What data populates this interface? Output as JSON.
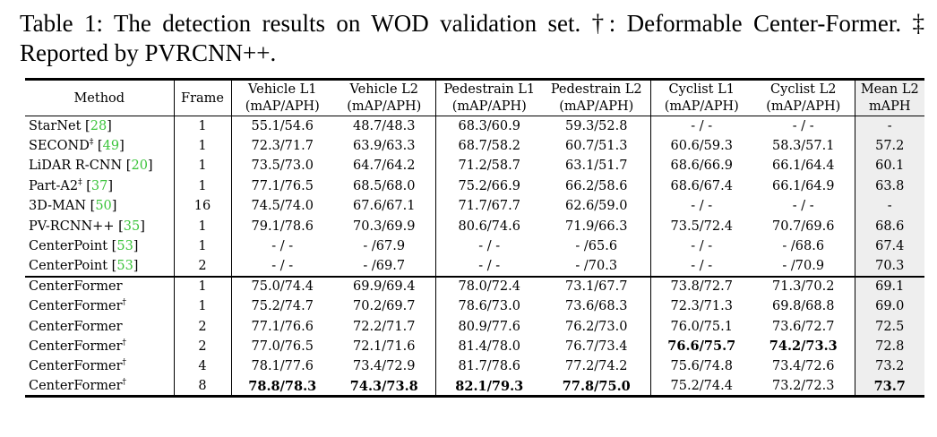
{
  "caption": "Table 1: The detection results on WOD validation set. †: Deformable Center-Former. ‡ Reported by PVRCNN++.",
  "headers": {
    "method": "Method",
    "frame": "Frame",
    "vehicle_l1": "Vehicle L1",
    "vehicle_l2": "Vehicle L2",
    "ped_l1": "Pedestrain L1",
    "ped_l2": "Pedestrain L2",
    "cyc_l1": "Cyclist L1",
    "cyc_l2": "Cyclist L2",
    "mean_l2": "Mean L2",
    "sub_map_aph": "(mAP/APH)",
    "sub_maph": "mAPH"
  },
  "rows_group1": [
    {
      "method": "StarNet",
      "sup": "",
      "ref": "28",
      "frame": "1",
      "v1": "55.1/54.6",
      "v2": "48.7/48.3",
      "p1": "68.3/60.9",
      "p2": "59.3/52.8",
      "c1": "- / -",
      "c2": "- / -",
      "mean": "-"
    },
    {
      "method": "SECOND",
      "sup": "‡",
      "ref": "49",
      "frame": "1",
      "v1": "72.3/71.7",
      "v2": "63.9/63.3",
      "p1": "68.7/58.2",
      "p2": "60.7/51.3",
      "c1": "60.6/59.3",
      "c2": "58.3/57.1",
      "mean": "57.2"
    },
    {
      "method": "LiDAR R-CNN",
      "sup": "",
      "ref": "20",
      "frame": "1",
      "v1": "73.5/73.0",
      "v2": "64.7/64.2",
      "p1": "71.2/58.7",
      "p2": "63.1/51.7",
      "c1": "68.6/66.9",
      "c2": "66.1/64.4",
      "mean": "60.1"
    },
    {
      "method": "Part-A2",
      "sup": "‡",
      "ref": "37",
      "frame": "1",
      "v1": "77.1/76.5",
      "v2": "68.5/68.0",
      "p1": "75.2/66.9",
      "p2": "66.2/58.6",
      "c1": "68.6/67.4",
      "c2": "66.1/64.9",
      "mean": "63.8"
    },
    {
      "method": "3D-MAN",
      "sup": "",
      "ref": "50",
      "frame": "16",
      "v1": "74.5/74.0",
      "v2": "67.6/67.1",
      "p1": "71.7/67.7",
      "p2": "62.6/59.0",
      "c1": "- / -",
      "c2": "- / -",
      "mean": "-"
    },
    {
      "method": "PV-RCNN++",
      "sup": "",
      "ref": "35",
      "frame": "1",
      "v1": "79.1/78.6",
      "v2": "70.3/69.9",
      "p1": "80.6/74.6",
      "p2": "71.9/66.3",
      "c1": "73.5/72.4",
      "c2": "70.7/69.6",
      "mean": "68.6"
    },
    {
      "method": "CenterPoint",
      "sup": "",
      "ref": "53",
      "frame": "1",
      "v1": "- / -",
      "v2": "- /67.9",
      "p1": "- / -",
      "p2": "- /65.6",
      "c1": "- / -",
      "c2": "- /68.6",
      "mean": "67.4"
    },
    {
      "method": "CenterPoint",
      "sup": "",
      "ref": "53",
      "frame": "2",
      "v1": "- / -",
      "v2": "- /69.7",
      "p1": "- / -",
      "p2": "- /70.3",
      "c1": "- / -",
      "c2": "- /70.9",
      "mean": "70.3"
    }
  ],
  "rows_group2": [
    {
      "method": "CenterFormer",
      "sup": "",
      "frame": "1",
      "v1": "75.0/74.4",
      "v2": "69.9/69.4",
      "p1": "78.0/72.4",
      "p2": "73.1/67.7",
      "c1": "73.8/72.7",
      "c2": "71.3/70.2",
      "mean": "69.1"
    },
    {
      "method": "CenterFormer",
      "sup": "†",
      "frame": "1",
      "v1": "75.2/74.7",
      "v2": "70.2/69.7",
      "p1": "78.6/73.0",
      "p2": "73.6/68.3",
      "c1": "72.3/71.3",
      "c2": "69.8/68.8",
      "mean": "69.0"
    },
    {
      "method": "CenterFormer",
      "sup": "",
      "frame": "2",
      "v1": "77.1/76.6",
      "v2": "72.2/71.7",
      "p1": "80.9/77.6",
      "p2": "76.2/73.0",
      "c1": "76.0/75.1",
      "c2": "73.6/72.7",
      "mean": "72.5"
    },
    {
      "method": "CenterFormer",
      "sup": "†",
      "frame": "2",
      "v1": "77.0/76.5",
      "v2": "72.1/71.6",
      "p1": "81.4/78.0",
      "p2": "76.7/73.4",
      "c1": "76.6/75.7",
      "c2": "74.2/73.3",
      "mean": "72.8"
    },
    {
      "method": "CenterFormer",
      "sup": "†",
      "frame": "4",
      "v1": "78.1/77.6",
      "v2": "73.4/72.9",
      "p1": "81.7/78.6",
      "p2": "77.2/74.2",
      "c1": "75.6/74.8",
      "c2": "73.4/72.6",
      "mean": "73.2"
    },
    {
      "method": "CenterFormer",
      "sup": "†",
      "frame": "8",
      "v1": "78.8/78.3",
      "v2": "74.3/73.8",
      "p1": "82.1/79.3",
      "p2": "77.8/75.0",
      "c1": "75.2/74.4",
      "c2": "73.2/72.3",
      "mean": "73.7"
    }
  ],
  "bold_cells": [
    "rows_group2.3.c1",
    "rows_group2.3.c2",
    "rows_group2.5.v1",
    "rows_group2.5.v2",
    "rows_group2.5.p1",
    "rows_group2.5.p2",
    "rows_group2.5.mean"
  ],
  "colors": {
    "citation": "#3bc43b",
    "shade": "#eeeeee"
  }
}
